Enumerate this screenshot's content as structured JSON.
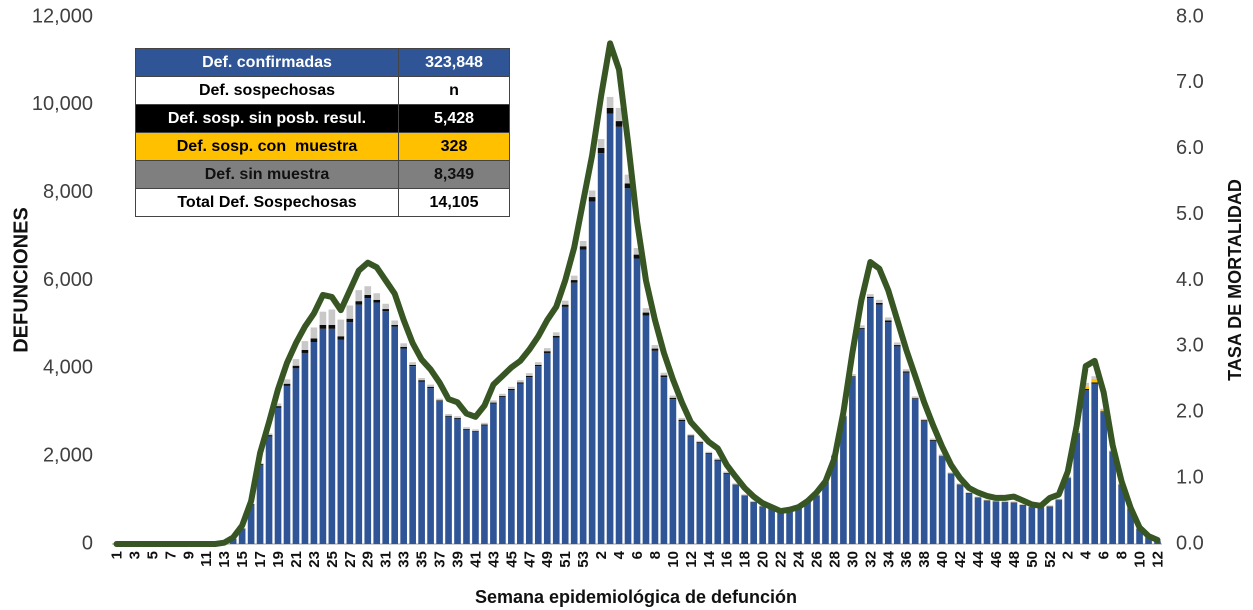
{
  "chart_data": {
    "type": "bar",
    "x_title": "Semana epidemiológica de defunción",
    "y_title": "DEFUNCIONES",
    "y2_title": "TASA DE MORTALIDAD",
    "categories": [
      "1",
      null,
      "3",
      null,
      "5",
      null,
      "7",
      null,
      "9",
      null,
      "11",
      null,
      "13",
      null,
      "15",
      null,
      "17",
      null,
      "19",
      null,
      "21",
      null,
      "23",
      null,
      "25",
      null,
      "27",
      null,
      "29",
      null,
      "31",
      null,
      "33",
      null,
      "35",
      null,
      "37",
      null,
      "39",
      null,
      "41",
      null,
      "43",
      null,
      "45",
      null,
      "47",
      null,
      "49",
      null,
      "51",
      null,
      "53",
      null,
      "2",
      null,
      "4",
      null,
      "6",
      null,
      "8",
      null,
      "10",
      null,
      "12",
      null,
      "14",
      null,
      "16",
      null,
      "18",
      null,
      "20",
      null,
      "22",
      null,
      "24",
      null,
      "26",
      null,
      "28",
      null,
      "30",
      null,
      "32",
      null,
      "34",
      null,
      "36",
      null,
      "38",
      null,
      "40",
      null,
      "42",
      null,
      "44",
      null,
      "46",
      null,
      "48",
      null,
      "50",
      null,
      "52",
      null,
      "2",
      null,
      "4",
      null,
      "6",
      null,
      "8",
      null,
      "10",
      null,
      "12"
    ],
    "ylim": [
      0,
      12000
    ],
    "yticks": [
      0,
      {
        "value": 2000,
        "label": "2,000"
      },
      {
        "value": 4000,
        "label": "4,000"
      },
      {
        "value": 6000,
        "label": "6,000"
      },
      {
        "value": 8000,
        "label": "8,000"
      },
      {
        "value": 10000,
        "label": "10,000"
      },
      {
        "value": 12000,
        "label": "12,000"
      }
    ],
    "y2lim": [
      0,
      8
    ],
    "y2ticks": [
      {
        "value": 0,
        "label": "0.0"
      },
      {
        "value": 1,
        "label": "1.0"
      },
      {
        "value": 2,
        "label": "2.0"
      },
      {
        "value": 3,
        "label": "3.0"
      },
      {
        "value": 4,
        "label": "4.0"
      },
      {
        "value": 5,
        "label": "5.0"
      },
      {
        "value": 6,
        "label": "6.0"
      },
      {
        "value": 7,
        "label": "7.0"
      },
      {
        "value": 8,
        "label": "8.0"
      }
    ],
    "series": [
      {
        "color": "#2f5597",
        "values": [
          0,
          0,
          0,
          0,
          0,
          0,
          0,
          0,
          0,
          0,
          0,
          0,
          20,
          120,
          350,
          900,
          1800,
          2450,
          3100,
          3600,
          4000,
          4350,
          4600,
          4900,
          4900,
          4650,
          5050,
          5450,
          5600,
          5500,
          5300,
          4950,
          4450,
          4050,
          3700,
          3550,
          3250,
          2900,
          2850,
          2600,
          2550,
          2700,
          3200,
          3350,
          3500,
          3650,
          3800,
          4050,
          4350,
          4700,
          5400,
          5950,
          6700,
          7800,
          8900,
          9800,
          9500,
          8100,
          6500,
          5200,
          4400,
          3800,
          3300,
          2800,
          2450,
          2300,
          2050,
          1900,
          1600,
          1350,
          1100,
          950,
          850,
          800,
          750,
          780,
          850,
          950,
          1100,
          1400,
          2000,
          2900,
          3800,
          4900,
          5600,
          5450,
          5050,
          4500,
          3900,
          3300,
          2800,
          2350,
          2000,
          1600,
          1350,
          1150,
          1050,
          980,
          960,
          950,
          940,
          880,
          830,
          820,
          850,
          1000,
          1500,
          2500,
          3500,
          3650,
          3000,
          2100,
          1350,
          800,
          350,
          150,
          60
        ]
      },
      {
        "color": "#0d0d0d",
        "values": [
          0,
          0,
          0,
          0,
          0,
          0,
          0,
          0,
          0,
          0,
          0,
          0,
          0,
          0,
          5,
          10,
          20,
          30,
          40,
          50,
          60,
          70,
          80,
          90,
          90,
          80,
          80,
          80,
          70,
          60,
          50,
          40,
          40,
          30,
          30,
          30,
          20,
          20,
          20,
          20,
          20,
          20,
          20,
          20,
          30,
          30,
          30,
          30,
          40,
          40,
          50,
          60,
          80,
          100,
          120,
          130,
          130,
          110,
          90,
          70,
          50,
          40,
          30,
          30,
          20,
          20,
          20,
          20,
          20,
          10,
          10,
          10,
          10,
          10,
          10,
          10,
          10,
          10,
          10,
          10,
          10,
          10,
          20,
          20,
          30,
          40,
          40,
          30,
          30,
          20,
          20,
          20,
          10,
          10,
          10,
          10,
          10,
          10,
          10,
          10,
          10,
          10,
          10,
          10,
          10,
          10,
          10,
          20,
          30,
          30,
          20,
          10,
          10,
          10,
          0,
          0,
          0
        ]
      },
      {
        "color": "#ffc000",
        "values": [
          0,
          0,
          0,
          0,
          0,
          0,
          0,
          0,
          0,
          0,
          0,
          0,
          0,
          0,
          0,
          0,
          0,
          0,
          0,
          0,
          0,
          0,
          0,
          0,
          0,
          0,
          0,
          0,
          0,
          0,
          0,
          0,
          0,
          0,
          0,
          0,
          0,
          0,
          0,
          0,
          0,
          0,
          0,
          0,
          0,
          0,
          0,
          0,
          0,
          0,
          0,
          0,
          0,
          0,
          0,
          0,
          0,
          0,
          0,
          0,
          0,
          0,
          0,
          0,
          0,
          0,
          0,
          0,
          0,
          0,
          0,
          0,
          0,
          0,
          0,
          0,
          0,
          0,
          0,
          0,
          0,
          0,
          0,
          0,
          0,
          0,
          0,
          0,
          0,
          0,
          0,
          0,
          0,
          0,
          0,
          0,
          0,
          0,
          0,
          0,
          0,
          0,
          0,
          0,
          0,
          0,
          0,
          0,
          60,
          80,
          20,
          0,
          0,
          0,
          0,
          0,
          0
        ]
      },
      {
        "color": "#c8c8c8",
        "values": [
          0,
          0,
          0,
          0,
          0,
          0,
          0,
          0,
          0,
          0,
          0,
          0,
          0,
          0,
          5,
          10,
          20,
          40,
          60,
          100,
          150,
          200,
          250,
          300,
          350,
          380,
          300,
          250,
          200,
          150,
          120,
          100,
          80,
          60,
          50,
          50,
          40,
          40,
          40,
          40,
          40,
          40,
          50,
          50,
          50,
          50,
          60,
          60,
          70,
          80,
          90,
          100,
          120,
          150,
          200,
          250,
          300,
          200,
          150,
          100,
          80,
          60,
          50,
          40,
          30,
          30,
          30,
          30,
          30,
          20,
          20,
          20,
          20,
          20,
          20,
          20,
          20,
          20,
          20,
          20,
          30,
          40,
          50,
          60,
          60,
          70,
          70,
          60,
          50,
          40,
          30,
          30,
          30,
          20,
          20,
          20,
          20,
          20,
          20,
          20,
          20,
          20,
          20,
          20,
          20,
          20,
          30,
          50,
          80,
          60,
          40,
          30,
          20,
          10,
          10,
          0,
          0
        ]
      },
      {
        "type": "line",
        "axis": "y2",
        "color": "#375623",
        "values": [
          0,
          0,
          0,
          0,
          0,
          0,
          0,
          0,
          0,
          0,
          0,
          0,
          0.02,
          0.1,
          0.28,
          0.65,
          1.38,
          1.85,
          2.35,
          2.75,
          3.05,
          3.3,
          3.5,
          3.78,
          3.75,
          3.55,
          3.85,
          4.15,
          4.27,
          4.2,
          4.0,
          3.8,
          3.4,
          3.05,
          2.8,
          2.65,
          2.45,
          2.2,
          2.15,
          1.98,
          1.93,
          2.1,
          2.42,
          2.55,
          2.68,
          2.78,
          2.95,
          3.15,
          3.4,
          3.6,
          4.0,
          4.5,
          5.2,
          5.9,
          6.8,
          7.6,
          7.2,
          6.1,
          4.9,
          4.0,
          3.4,
          2.9,
          2.5,
          2.15,
          1.85,
          1.7,
          1.55,
          1.45,
          1.2,
          1.02,
          0.85,
          0.72,
          0.62,
          0.56,
          0.5,
          0.52,
          0.56,
          0.65,
          0.78,
          0.95,
          1.3,
          2.0,
          2.9,
          3.7,
          4.28,
          4.18,
          3.85,
          3.4,
          2.95,
          2.55,
          2.15,
          1.8,
          1.48,
          1.2,
          1.0,
          0.85,
          0.78,
          0.73,
          0.7,
          0.7,
          0.72,
          0.66,
          0.6,
          0.58,
          0.7,
          0.75,
          1.1,
          1.8,
          2.7,
          2.78,
          2.3,
          1.5,
          0.95,
          0.55,
          0.25,
          0.12,
          0.06
        ]
      }
    ]
  },
  "summary_table": {
    "rows": [
      [
        "Def. confirmadas",
        "323,848"
      ],
      [
        "Def. sospechosas",
        "n"
      ],
      [
        "Def. sosp. sin posb. resul.",
        "5,428"
      ],
      [
        "Def. sosp. con  muestra",
        "328"
      ],
      [
        "Def. sin muestra",
        "8,349"
      ],
      [
        "Total Def. Sospechosas",
        "14,105"
      ]
    ]
  }
}
